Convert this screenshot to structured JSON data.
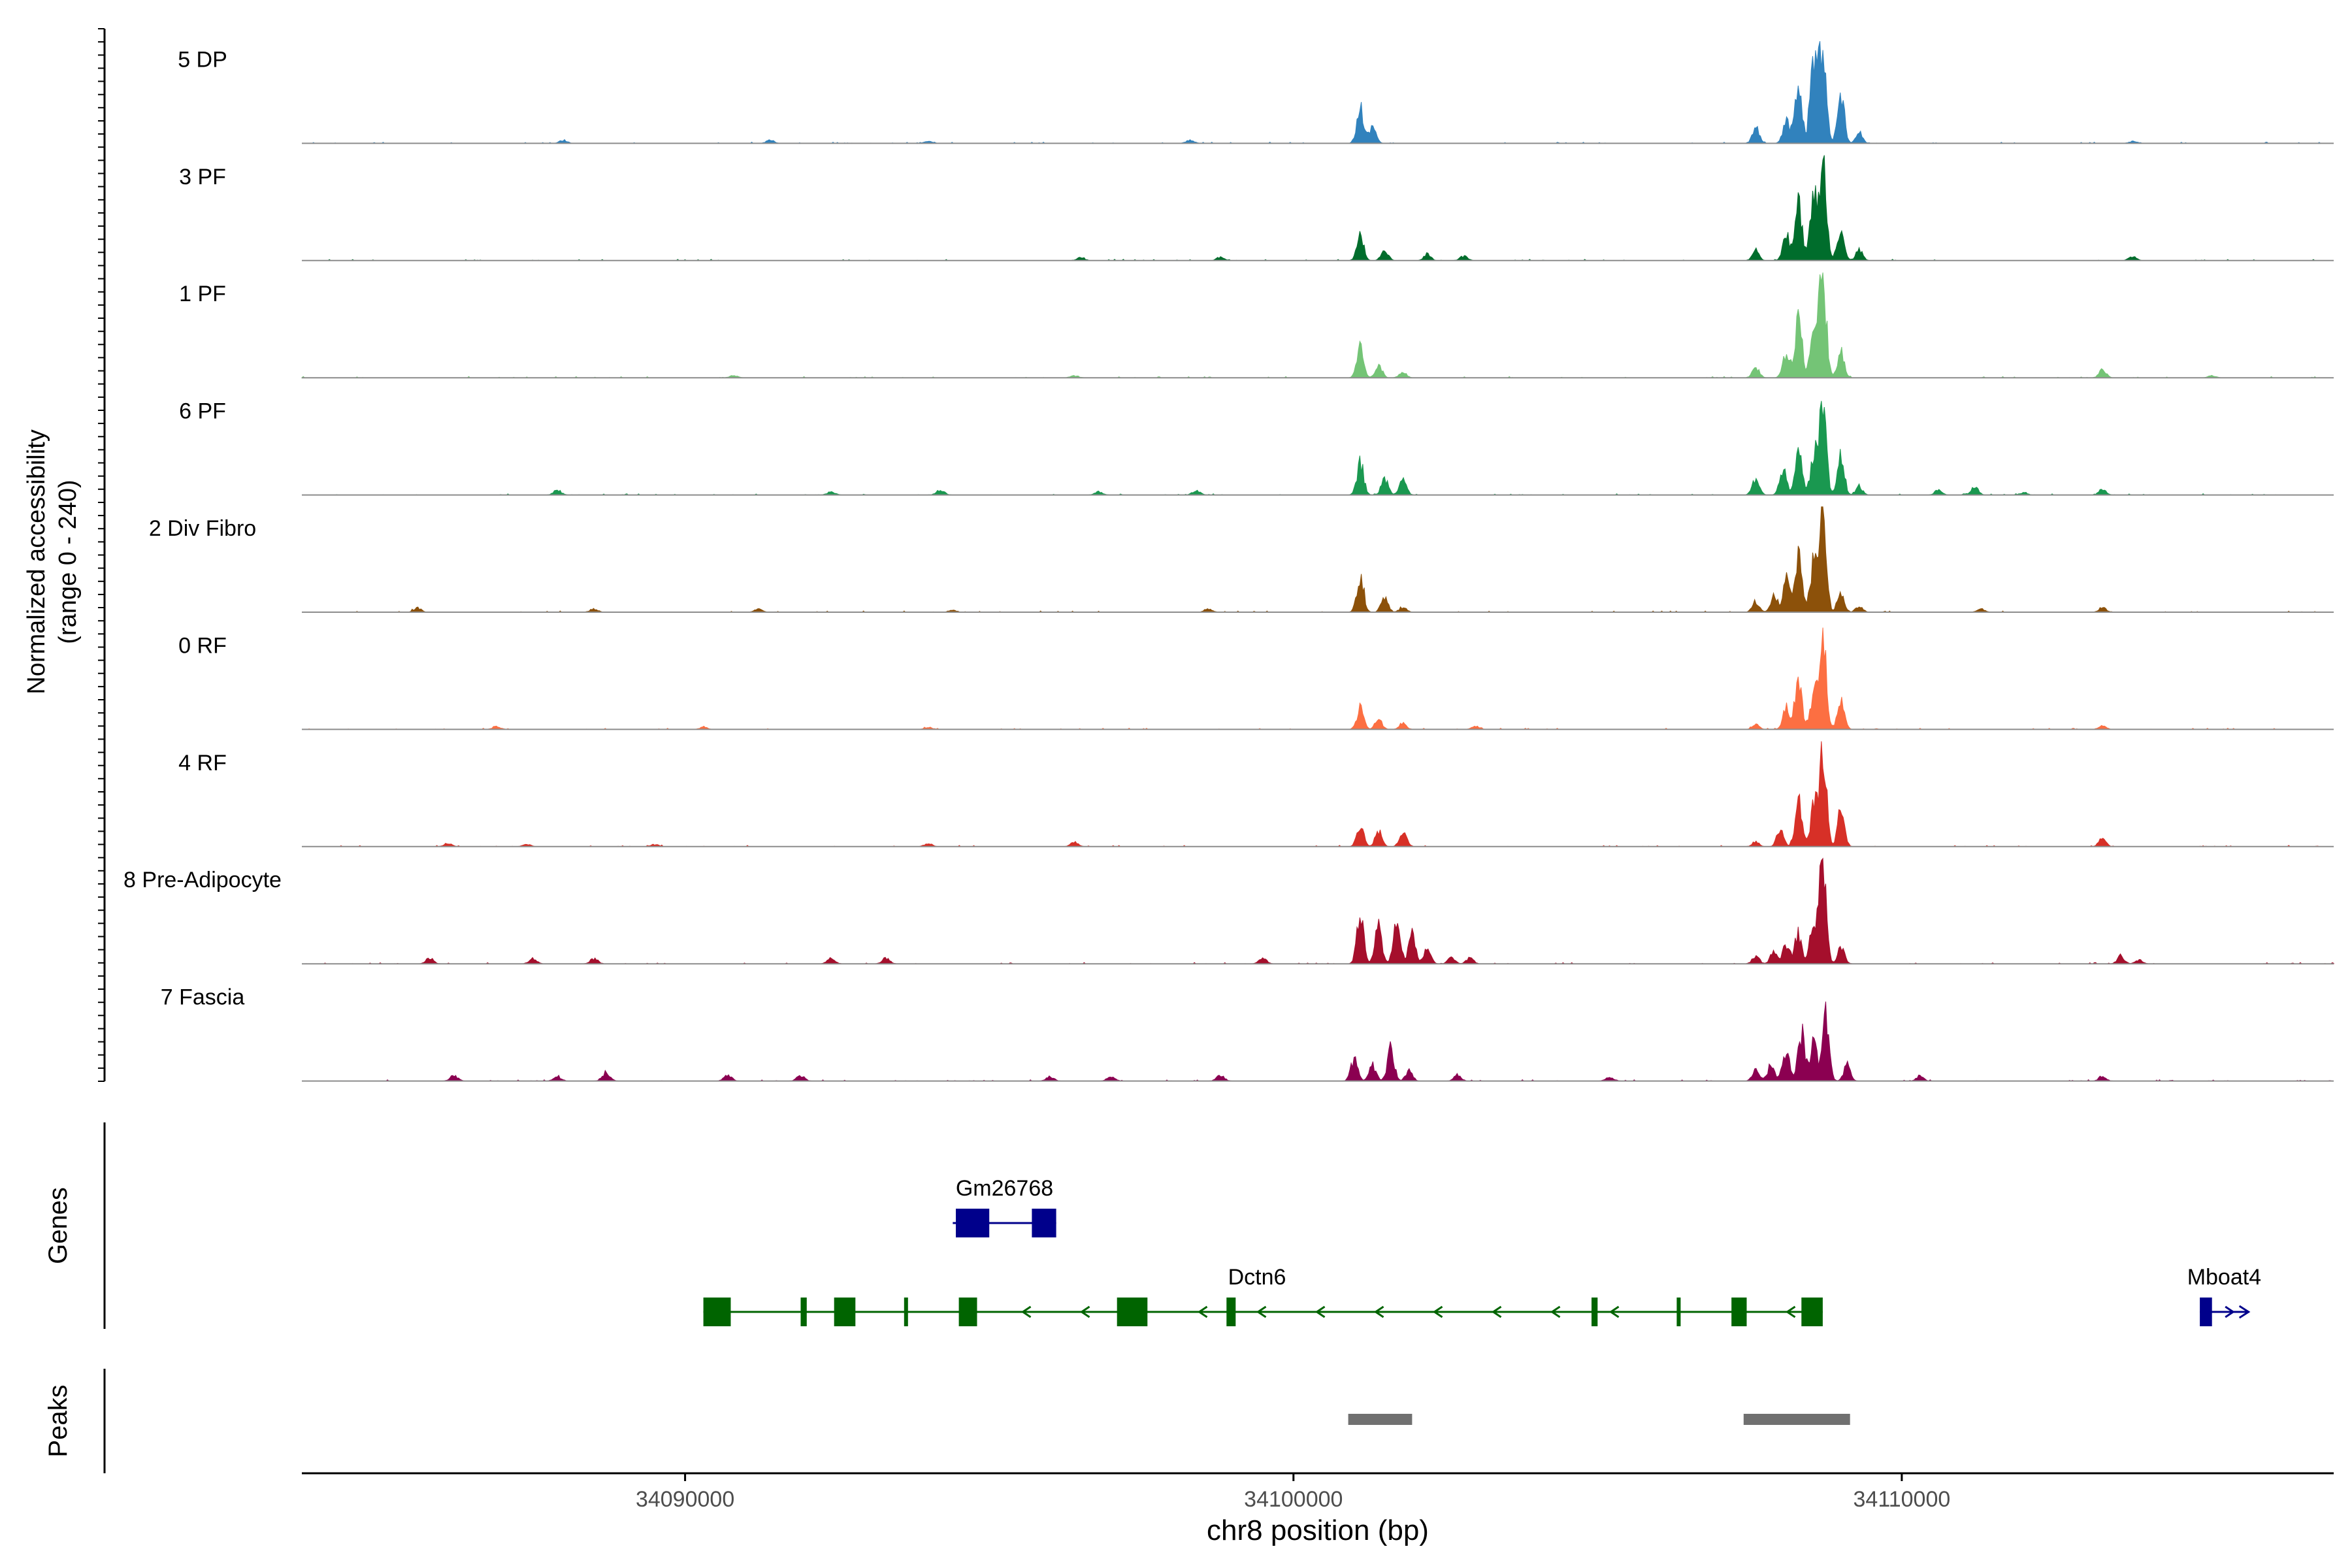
{
  "chart_data": {
    "type": "area",
    "subtype": "genome-coverage-track",
    "chromosome": "chr8",
    "xlim": [
      34083700,
      34117100
    ],
    "x_ticks": [
      34090000,
      34100000,
      34110000
    ],
    "x_tick_labels": [
      "34090000",
      "34100000",
      "34110000"
    ],
    "xlabel": "chr8 position (bp)",
    "ylabel_line1": "Normalized accessibility",
    "ylabel_line2": "(range 0 - 240)",
    "ylim": [
      0,
      240
    ],
    "tracks_ylabel": "Genes",
    "peaks_ylabel": "Peaks",
    "series": [
      {
        "name": "5 DP",
        "color": "#3182bd",
        "peaks": [
          [
            34101100,
            0.35
          ],
          [
            34101300,
            0.15
          ],
          [
            34107600,
            0.15
          ],
          [
            34108100,
            0.2
          ],
          [
            34108300,
            0.6
          ],
          [
            34108550,
            0.8
          ],
          [
            34108700,
            1.0
          ],
          [
            34109000,
            0.45
          ],
          [
            34109300,
            0.1
          ]
        ],
        "noise": [
          [
            34088000,
            0.03
          ],
          [
            34091400,
            0.03
          ],
          [
            34094000,
            0.02
          ],
          [
            34098300,
            0.03
          ],
          [
            34113800,
            0.02
          ]
        ]
      },
      {
        "name": "3 PF",
        "color": "#006d2c",
        "peaks": [
          [
            34101100,
            0.25
          ],
          [
            34101500,
            0.1
          ],
          [
            34102200,
            0.06
          ],
          [
            34107600,
            0.1
          ],
          [
            34108100,
            0.25
          ],
          [
            34108300,
            0.55
          ],
          [
            34108550,
            0.6
          ],
          [
            34108700,
            1.0
          ],
          [
            34109000,
            0.3
          ],
          [
            34109300,
            0.1
          ]
        ],
        "noise": [
          [
            34096500,
            0.03
          ],
          [
            34098800,
            0.03
          ],
          [
            34102800,
            0.04
          ],
          [
            34113800,
            0.04
          ]
        ]
      },
      {
        "name": "1 PF",
        "color": "#74c476",
        "peaks": [
          [
            34101100,
            0.3
          ],
          [
            34101400,
            0.12
          ],
          [
            34101800,
            0.06
          ],
          [
            34107600,
            0.1
          ],
          [
            34108100,
            0.25
          ],
          [
            34108300,
            0.6
          ],
          [
            34108550,
            0.45
          ],
          [
            34108700,
            1.0
          ],
          [
            34109000,
            0.25
          ],
          [
            34113300,
            0.08
          ]
        ],
        "noise": [
          [
            34090800,
            0.02
          ],
          [
            34096400,
            0.02
          ],
          [
            34115100,
            0.02
          ]
        ]
      },
      {
        "name": "6 PF",
        "color": "#1a9850",
        "peaks": [
          [
            34101100,
            0.3
          ],
          [
            34101500,
            0.15
          ],
          [
            34101800,
            0.15
          ],
          [
            34107600,
            0.15
          ],
          [
            34108050,
            0.25
          ],
          [
            34108300,
            0.5
          ],
          [
            34108550,
            0.35
          ],
          [
            34108700,
            1.0
          ],
          [
            34109000,
            0.35
          ],
          [
            34109300,
            0.08
          ],
          [
            34110600,
            0.05
          ],
          [
            34111200,
            0.08
          ],
          [
            34113300,
            0.06
          ]
        ],
        "noise": [
          [
            34087900,
            0.04
          ],
          [
            34092400,
            0.03
          ],
          [
            34094200,
            0.05
          ],
          [
            34096800,
            0.03
          ],
          [
            34098400,
            0.04
          ],
          [
            34112000,
            0.02
          ]
        ]
      },
      {
        "name": "2 Div Fibro",
        "color": "#8c510a",
        "peaks": [
          [
            34101100,
            0.35
          ],
          [
            34101500,
            0.15
          ],
          [
            34101800,
            0.05
          ],
          [
            34107600,
            0.1
          ],
          [
            34107900,
            0.15
          ],
          [
            34108100,
            0.3
          ],
          [
            34108300,
            0.55
          ],
          [
            34108550,
            0.5
          ],
          [
            34108700,
            1.0
          ],
          [
            34109000,
            0.2
          ],
          [
            34109300,
            0.06
          ],
          [
            34113300,
            0.05
          ]
        ],
        "noise": [
          [
            34085600,
            0.04
          ],
          [
            34088500,
            0.03
          ],
          [
            34091200,
            0.03
          ],
          [
            34094400,
            0.02
          ],
          [
            34098600,
            0.03
          ],
          [
            34111300,
            0.03
          ]
        ]
      },
      {
        "name": "0 RF",
        "color": "#fc6f42",
        "peaks": [
          [
            34101100,
            0.2
          ],
          [
            34101400,
            0.1
          ],
          [
            34101800,
            0.06
          ],
          [
            34107600,
            0.05
          ],
          [
            34108100,
            0.2
          ],
          [
            34108300,
            0.5
          ],
          [
            34108550,
            0.35
          ],
          [
            34108700,
            1.0
          ],
          [
            34109000,
            0.3
          ],
          [
            34113300,
            0.04
          ]
        ],
        "noise": [
          [
            34086900,
            0.03
          ],
          [
            34090300,
            0.02
          ],
          [
            34094000,
            0.02
          ],
          [
            34103000,
            0.03
          ]
        ]
      },
      {
        "name": "4 RF",
        "color": "#d73027",
        "peaks": [
          [
            34101100,
            0.2
          ],
          [
            34101400,
            0.15
          ],
          [
            34101800,
            0.15
          ],
          [
            34107600,
            0.05
          ],
          [
            34108000,
            0.15
          ],
          [
            34108300,
            0.45
          ],
          [
            34108550,
            0.35
          ],
          [
            34108700,
            1.0
          ],
          [
            34109000,
            0.35
          ],
          [
            34113300,
            0.08
          ]
        ],
        "noise": [
          [
            34086100,
            0.03
          ],
          [
            34087400,
            0.02
          ],
          [
            34089500,
            0.02
          ],
          [
            34094000,
            0.03
          ],
          [
            34096400,
            0.04
          ]
        ]
      },
      {
        "name": "8 Pre-Adipocyte",
        "color": "#a50f2c",
        "peaks": [
          [
            34101100,
            0.45
          ],
          [
            34101400,
            0.35
          ],
          [
            34101700,
            0.4
          ],
          [
            34101950,
            0.3
          ],
          [
            34102200,
            0.15
          ],
          [
            34102600,
            0.06
          ],
          [
            34102900,
            0.06
          ],
          [
            34107600,
            0.08
          ],
          [
            34107900,
            0.12
          ],
          [
            34108100,
            0.2
          ],
          [
            34108300,
            0.3
          ],
          [
            34108550,
            0.4
          ],
          [
            34108700,
            1.0
          ],
          [
            34109000,
            0.15
          ],
          [
            34113600,
            0.08
          ],
          [
            34113900,
            0.04
          ]
        ],
        "noise": [
          [
            34085800,
            0.05
          ],
          [
            34087500,
            0.05
          ],
          [
            34088500,
            0.05
          ],
          [
            34092400,
            0.05
          ],
          [
            34093300,
            0.05
          ],
          [
            34099500,
            0.05
          ]
        ]
      },
      {
        "name": "7 Fascia",
        "color": "#8b0051",
        "peaks": [
          [
            34101000,
            0.2
          ],
          [
            34101300,
            0.15
          ],
          [
            34101600,
            0.3
          ],
          [
            34101900,
            0.1
          ],
          [
            34102700,
            0.06
          ],
          [
            34107600,
            0.1
          ],
          [
            34107850,
            0.15
          ],
          [
            34108100,
            0.3
          ],
          [
            34108350,
            0.45
          ],
          [
            34108550,
            0.35
          ],
          [
            34108750,
            0.6
          ],
          [
            34109100,
            0.15
          ],
          [
            34110300,
            0.05
          ],
          [
            34113300,
            0.05
          ]
        ],
        "noise": [
          [
            34086200,
            0.05
          ],
          [
            34087900,
            0.04
          ],
          [
            34088700,
            0.08
          ],
          [
            34090700,
            0.05
          ],
          [
            34091900,
            0.05
          ],
          [
            34096000,
            0.04
          ],
          [
            34097000,
            0.05
          ],
          [
            34098800,
            0.05
          ],
          [
            34105200,
            0.04
          ]
        ]
      }
    ],
    "genes": [
      {
        "name": "Gm26768",
        "strand": "+",
        "color": "#00008b",
        "start": 34094400,
        "end": 34096100,
        "exons": [
          [
            34094450,
            34095000
          ],
          [
            34095700,
            34096100
          ]
        ]
      },
      {
        "name": "Dctn6",
        "strand": "-",
        "color": "#006400",
        "start": 34090300,
        "end": 34108700,
        "exons": [
          [
            34090300,
            34090750
          ],
          [
            34091900,
            34092000
          ],
          [
            34092450,
            34092800
          ],
          [
            34093600,
            34093650
          ],
          [
            34094500,
            34094800
          ],
          [
            34097100,
            34097600
          ],
          [
            34098900,
            34099050
          ],
          [
            34104900,
            34105000
          ],
          [
            34106300,
            34106350
          ],
          [
            34107200,
            34107450
          ],
          [
            34108350,
            34108700
          ]
        ]
      },
      {
        "name": "Mboat4",
        "strand": "+",
        "color": "#00008b",
        "start": 34114900,
        "end": 34115700,
        "exons": [
          [
            34114900,
            34115100
          ]
        ]
      }
    ],
    "peak_regions": [
      [
        34100900,
        34101950
      ],
      [
        34107400,
        34109150
      ]
    ]
  }
}
